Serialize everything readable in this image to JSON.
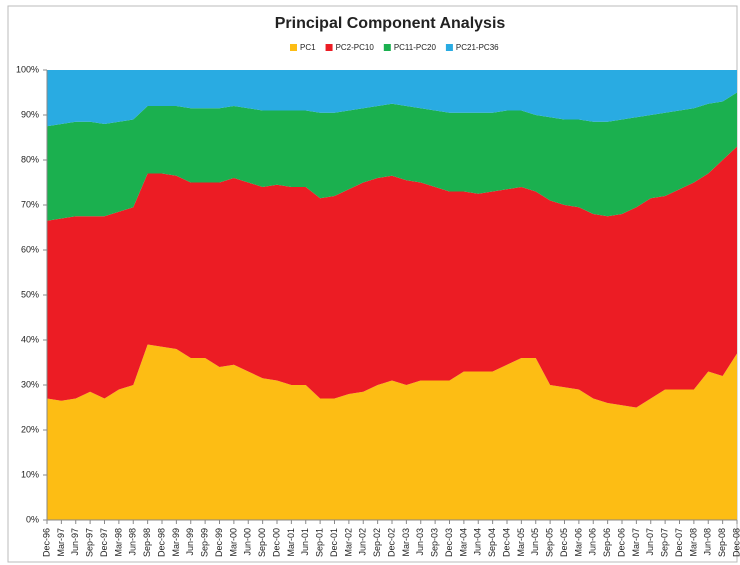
{
  "chart_data": {
    "type": "stacked_area",
    "title": "Principal Component Analysis",
    "categories": [
      "Dec-96",
      "Mar-97",
      "Jun-97",
      "Sep-97",
      "Dec-97",
      "Mar-98",
      "Jun-98",
      "Sep-98",
      "Dec-98",
      "Mar-99",
      "Jun-99",
      "Sep-99",
      "Dec-99",
      "Mar-00",
      "Jun-00",
      "Sep-00",
      "Dec-00",
      "Mar-01",
      "Jun-01",
      "Sep-01",
      "Dec-01",
      "Mar-02",
      "Jun-02",
      "Sep-02",
      "Dec-02",
      "Mar-03",
      "Jun-03",
      "Sep-03",
      "Dec-03",
      "Mar-04",
      "Jun-04",
      "Sep-04",
      "Dec-04",
      "Mar-05",
      "Jun-05",
      "Sep-05",
      "Dec-05",
      "Mar-06",
      "Jun-06",
      "Sep-06",
      "Dec-06",
      "Mar-07",
      "Jun-07",
      "Sep-07",
      "Dec-07",
      "Mar-08",
      "Jun-08",
      "Sep-08",
      "Dec-08"
    ],
    "series": [
      {
        "name": "PC1",
        "color": "#fdbd14",
        "values": [
          27,
          26.5,
          27,
          28.5,
          27,
          29,
          30,
          39,
          38.5,
          38,
          36,
          36,
          34,
          34.5,
          33,
          31.5,
          31,
          30,
          30,
          27,
          27,
          28,
          28.5,
          30,
          31,
          30,
          31,
          31,
          31,
          33,
          33,
          33,
          34.5,
          36,
          36,
          30,
          29.5,
          29,
          27,
          26,
          25.5,
          25,
          27,
          29,
          29,
          29,
          33,
          32,
          37
        ]
      },
      {
        "name": "PC2-PC10",
        "color": "#ec1c24",
        "values": [
          39.5,
          40.5,
          40.5,
          39,
          40.5,
          39.5,
          39.5,
          38,
          38.5,
          38.5,
          39,
          39,
          41,
          41.5,
          42,
          42.5,
          43.5,
          44,
          44,
          44.5,
          45,
          45.5,
          46.5,
          46,
          45.5,
          45.5,
          44,
          43,
          42,
          40,
          39.5,
          40,
          39,
          38,
          37,
          41,
          40.5,
          40.5,
          41,
          41.5,
          42.5,
          44.5,
          44.5,
          43,
          44.5,
          46,
          44,
          48,
          46
        ]
      },
      {
        "name": "PC11-PC20",
        "color": "#1bb04f",
        "values": [
          21,
          21,
          21,
          21,
          20.5,
          20,
          19.5,
          15,
          15,
          15.5,
          16.5,
          16.5,
          16.5,
          16,
          16.5,
          17,
          16.5,
          17,
          17,
          19,
          18.5,
          17.5,
          16.5,
          16,
          16,
          16.5,
          16.5,
          17,
          17.5,
          17.5,
          18,
          17.5,
          17.5,
          17,
          17,
          18.5,
          19,
          19.5,
          20.5,
          21,
          21,
          20,
          18.5,
          18.5,
          17.5,
          16.5,
          15.5,
          13,
          12
        ]
      },
      {
        "name": "PC21-PC36",
        "color": "#29abe2",
        "values": [
          12.5,
          12,
          11.5,
          11.5,
          12,
          11.5,
          11,
          8,
          8,
          8,
          8.5,
          8.5,
          8.5,
          8,
          8.5,
          9,
          9,
          9,
          9,
          9.5,
          9.5,
          9,
          8.5,
          8,
          7.5,
          8,
          8.5,
          9,
          9.5,
          9.5,
          9.5,
          9.5,
          9,
          9,
          10,
          10.5,
          11,
          11,
          11.5,
          11.5,
          11,
          10.5,
          10,
          9.5,
          9,
          8.5,
          7.5,
          7,
          5
        ]
      }
    ],
    "ylim": [
      0,
      100
    ],
    "yticks": [
      {
        "value": 0,
        "label": "0%"
      },
      {
        "value": 10,
        "label": "10%"
      },
      {
        "value": 20,
        "label": "20%"
      },
      {
        "value": 30,
        "label": "30%"
      },
      {
        "value": 40,
        "label": "40%"
      },
      {
        "value": 50,
        "label": "50%"
      },
      {
        "value": 60,
        "label": "60%"
      },
      {
        "value": 70,
        "label": "70%"
      },
      {
        "value": 80,
        "label": "80%"
      },
      {
        "value": 90,
        "label": "90%"
      },
      {
        "value": 100,
        "label": "100%"
      }
    ],
    "grid": false,
    "legend": "top"
  }
}
